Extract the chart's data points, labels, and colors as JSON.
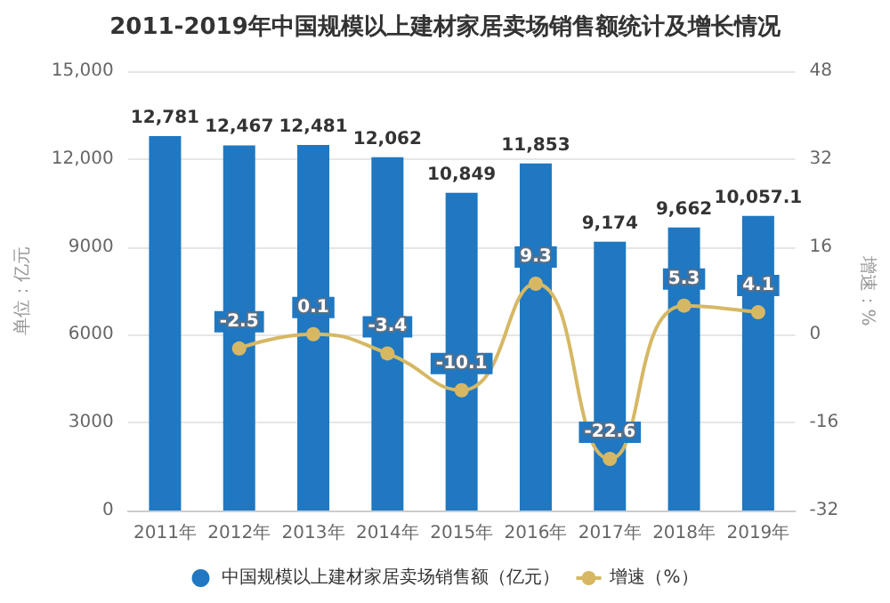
{
  "chart_data": {
    "type": "bar",
    "title": "2011-2019年中国规模以上建材家居卖场销售额统计及增长情况",
    "ylabel": "单位：亿元",
    "y2label": "增速：%",
    "categories": [
      "2011年",
      "2012年",
      "2013年",
      "2014年",
      "2015年",
      "2016年",
      "2017年",
      "2018年",
      "2019年"
    ],
    "series": [
      {
        "name": "中国规模以上建材家居卖场销售额（亿元）",
        "color": "#1f78c1",
        "values": [
          12781,
          12467,
          12481,
          12062,
          10849,
          11853,
          9174,
          9662,
          10057.1
        ],
        "value_labels": [
          "12,781",
          "12,467",
          "12,481",
          "12,062",
          "10,849",
          "11,853",
          "9,174",
          "9,662",
          "10,057.1"
        ]
      },
      {
        "name": "增速（%）",
        "type": "line",
        "axis": "y2",
        "color": "#d6b864",
        "values": [
          null,
          -2.5,
          0.1,
          -3.4,
          -10.1,
          9.3,
          -22.6,
          5.3,
          4.1
        ],
        "value_labels": [
          null,
          "-2.5",
          "0.1",
          "-3.4",
          "-10.1",
          "9.3",
          "-22.6",
          "5.3",
          "4.1"
        ]
      }
    ],
    "ylim": [
      0,
      15000
    ],
    "yticks": [
      0,
      3000,
      6000,
      9000,
      {
        "value": 12000,
        "label": "12,000"
      },
      {
        "value": 15000,
        "label": "15,000"
      }
    ],
    "y2lim": [
      -32,
      48
    ],
    "y2ticks": [
      -32,
      -16,
      0,
      16,
      32,
      48
    ],
    "grid": "y",
    "legend": "bottom",
    "marker": "circle"
  }
}
